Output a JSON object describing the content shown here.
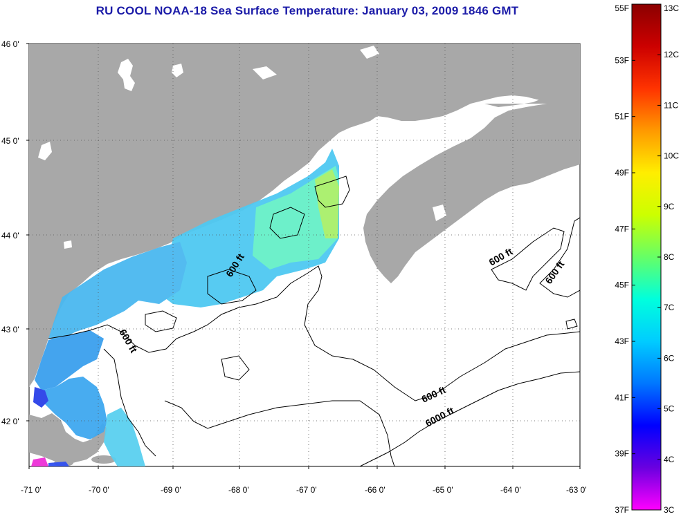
{
  "title": "RU COOL  NOAA-18  Sea Surface Temperature:  January 03, 2009 1846 GMT",
  "map": {
    "lat_labels": [
      "46 0'",
      "45 0'",
      "44 0'",
      "43 0'",
      "42 0'"
    ],
    "lon_labels": [
      "-71 0'",
      "-70 0'",
      "-69 0'",
      "-68 0'",
      "-67 0'",
      "-66 0'",
      "-65 0'",
      "-64 0'",
      "-63 0'"
    ],
    "contour_labels": [
      "600 ft",
      "600 ft",
      "600 ft",
      "600 ft",
      "600 ft",
      "6000 ft"
    ],
    "colors": {
      "land": "#a8a8a8",
      "ocean": "#ffffff",
      "title": "#1b1ba8"
    }
  },
  "colorbar": {
    "fahrenheit_labels": [
      "55F",
      "53F",
      "51F",
      "49F",
      "47F",
      "45F",
      "43F",
      "41F",
      "39F",
      "37F"
    ],
    "celsius_labels": [
      "13C",
      "12C",
      "11C",
      "10C",
      "9C",
      "8C",
      "7C",
      "6C",
      "5C",
      "4C",
      "3C"
    ],
    "gradient": [
      "#ff00ff",
      "#6a00e0",
      "#0000ff",
      "#0077ff",
      "#00ccff",
      "#00ffdd",
      "#66ff66",
      "#ccff00",
      "#ffee00",
      "#ff9900",
      "#ff3300",
      "#cc0000",
      "#8b0000"
    ]
  }
}
